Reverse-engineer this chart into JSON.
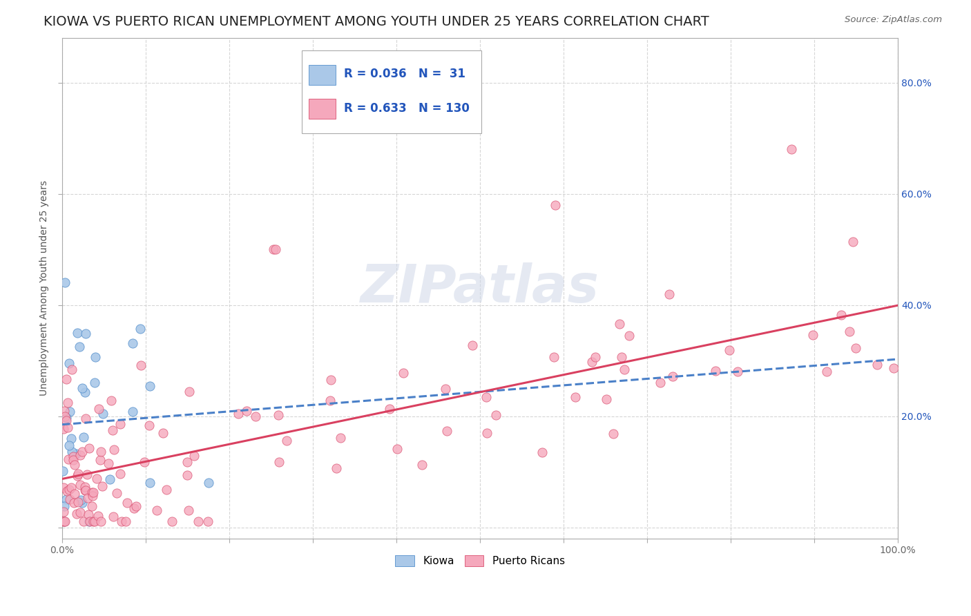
{
  "title": "KIOWA VS PUERTO RICAN UNEMPLOYMENT AMONG YOUTH UNDER 25 YEARS CORRELATION CHART",
  "source": "Source: ZipAtlas.com",
  "ylabel": "Unemployment Among Youth under 25 years",
  "xlim": [
    0,
    1
  ],
  "ylim": [
    -0.02,
    0.88
  ],
  "xticks": [
    0.0,
    0.1,
    0.2,
    0.3,
    0.4,
    0.5,
    0.6,
    0.7,
    0.8,
    0.9,
    1.0
  ],
  "xticklabels": [
    "0.0%",
    "",
    "",
    "",
    "",
    "",
    "",
    "",
    "",
    "",
    "100.0%"
  ],
  "yticks": [
    0.0,
    0.2,
    0.4,
    0.6,
    0.8
  ],
  "left_yticklabels": [
    "",
    "",
    "",
    "",
    ""
  ],
  "right_yticklabels": [
    "",
    "20.0%",
    "40.0%",
    "60.0%",
    "80.0%"
  ],
  "kiowa_color": "#aac8e8",
  "pr_color": "#f5a8bc",
  "kiowa_edge_color": "#5590cc",
  "pr_edge_color": "#d95070",
  "kiowa_line_color": "#4a80c8",
  "pr_line_color": "#d94060",
  "legend_text_color": "#2255bb",
  "kiowa_R": 0.036,
  "kiowa_N": 31,
  "pr_R": 0.633,
  "pr_N": 130,
  "grid_color": "#cccccc",
  "background_color": "#ffffff",
  "title_fontsize": 14,
  "axis_label_fontsize": 10,
  "tick_fontsize": 10,
  "watermark": "ZIPatlas",
  "kiowa_intercept": 0.195,
  "kiowa_slope": 0.05,
  "pr_intercept": 0.08,
  "pr_slope": 0.28
}
